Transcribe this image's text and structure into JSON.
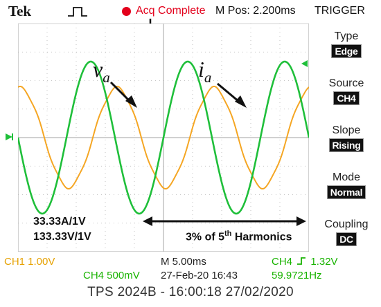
{
  "header": {
    "brand": "Tek",
    "acquisition_status": "Acq Complete",
    "main_position": "M Pos: 2.200ms",
    "menu_title": "TRIGGER"
  },
  "menu": {
    "items": [
      {
        "label": "Type",
        "value": "Edge"
      },
      {
        "label": "Source",
        "value": "CH4"
      },
      {
        "label": "Slope",
        "value": "Rising"
      },
      {
        "label": "Mode",
        "value": "Normal"
      },
      {
        "label": "Coupling",
        "value": "DC"
      }
    ]
  },
  "annotations": {
    "voltage_symbol": "v",
    "voltage_subscript": "a",
    "current_symbol": "i",
    "current_subscript": "a",
    "current_scale": "33.33A/1V",
    "voltage_scale": "133.33V/1V",
    "harmonics_prefix": "3% of 5",
    "harmonics_superscript": "th",
    "harmonics_suffix": " Harmonics"
  },
  "readouts": {
    "ch1_scale": "CH1  1.00V",
    "ch4_scale": "CH4  500mV",
    "timebase": "M 5.00ms",
    "datetime": "27-Feb-20 16:43",
    "trigger_channel": "CH4",
    "trigger_level": "1.32V",
    "frequency": "59.9721Hz"
  },
  "footer": "TPS 2024B - 16:00:18  27/02/2020",
  "colors": {
    "ch1_trace": "#f5a623",
    "ch4_trace": "#1fbf3a",
    "graticule": "#b5b5b5",
    "status_red": "#e3001b"
  }
}
